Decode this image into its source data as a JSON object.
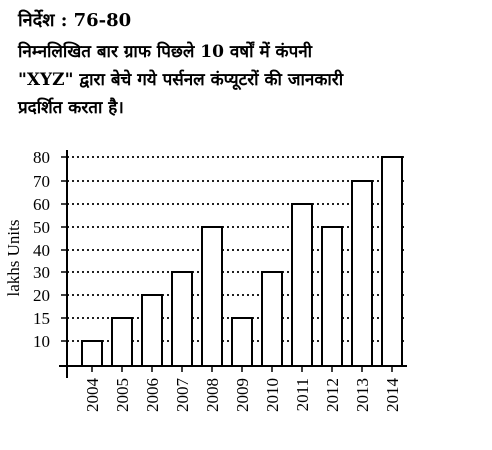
{
  "instruction": {
    "heading": "निर्देश : 76-80",
    "lines": [
      "निम्नलिखित बार ग्राफ पिछले 10 वर्षों में कंपनी",
      "\"XYZ\" द्वारा बेचे गये पर्सनल कंप्यूटरों की जानकारी",
      "प्रदर्शित करता है।"
    ]
  },
  "chart_data": {
    "type": "bar",
    "categories": [
      "2004",
      "2005",
      "2006",
      "2007",
      "2008",
      "2009",
      "2010",
      "2011",
      "2012",
      "2013",
      "2014"
    ],
    "values": [
      10,
      15,
      20,
      30,
      50,
      15,
      30,
      60,
      50,
      70,
      80
    ],
    "ylabel": "lakhs Units",
    "yticks": [
      10,
      15,
      20,
      30,
      40,
      50,
      60,
      70,
      80
    ],
    "grid": true,
    "grid_style": "dotted",
    "bar_color": "#ffffff",
    "edge_color": "#000000"
  }
}
